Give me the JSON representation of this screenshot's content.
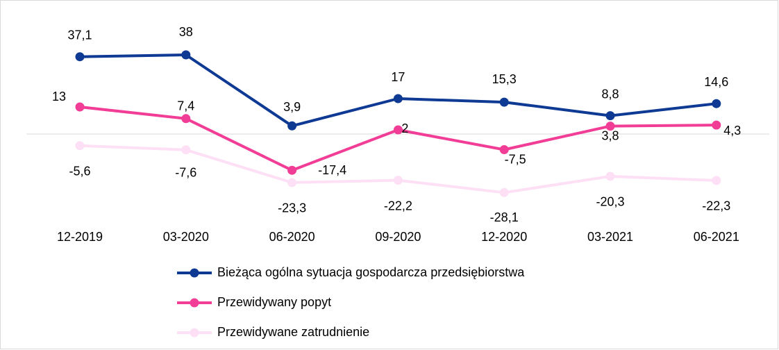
{
  "chart_data": {
    "type": "line",
    "categories": [
      "12-2019",
      "03-2020",
      "06-2020",
      "09-2020",
      "12-2020",
      "03-2021",
      "06-2021"
    ],
    "series": [
      {
        "name": "Bieżąca ogólna sytuacja gospodarcza przedsiębiorstwa",
        "color": "#0e3a94",
        "values": [
          37.1,
          38,
          3.9,
          17,
          15.3,
          8.8,
          14.6
        ],
        "value_labels": [
          "37,1",
          "38",
          "3,9",
          "17",
          "15,3",
          "8,8",
          "14,6"
        ]
      },
      {
        "name": "Przewidywany popyt",
        "color": "#f23d97",
        "values": [
          13,
          7.4,
          -17.4,
          2,
          -7.5,
          3.8,
          4.3
        ],
        "value_labels": [
          "13",
          "7,4",
          "-17,4",
          "2",
          "-7,5",
          "3,8",
          "4,3"
        ]
      },
      {
        "name": "Przewidywane zatrudnienie",
        "color": "#fde0f5",
        "values": [
          -5.6,
          -7.6,
          -23.3,
          -22.2,
          -28.1,
          -20.3,
          -22.3
        ],
        "value_labels": [
          "-5,6",
          "-7,6",
          "-23,3",
          "-22,2",
          "-28,1",
          "-20,3",
          "-22,3"
        ]
      }
    ],
    "ylim": [
      -35,
      55
    ]
  }
}
